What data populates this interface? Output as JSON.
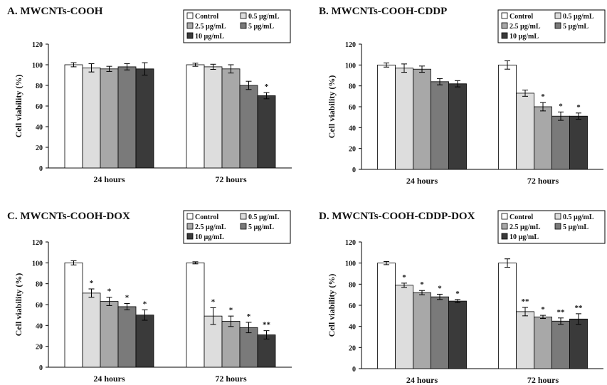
{
  "legend_labels": [
    "Control",
    "0.5 µg/mL",
    "2.5 µg/mL",
    "5 µg/mL",
    "10 µg/mL"
  ],
  "series_colors": [
    "#ffffff",
    "#dddddd",
    "#a8a8a8",
    "#7a7a7a",
    "#3a3a3a"
  ],
  "chart_data": [
    {
      "type": "bar",
      "title": "A. MWCNTs-COOH",
      "ylabel": "Cell viability (%)",
      "xlabel": "",
      "ylim": [
        0,
        120
      ],
      "yticks": [
        0,
        20,
        40,
        60,
        80,
        100,
        120
      ],
      "categories": [
        "24 hours",
        "72 hours"
      ],
      "series": [
        {
          "name": "Control",
          "values": [
            100,
            100
          ],
          "errors": [
            2,
            1.5
          ],
          "sig": [
            "",
            ""
          ]
        },
        {
          "name": "0.5 µg/mL",
          "values": [
            97,
            98
          ],
          "errors": [
            4,
            2.5
          ],
          "sig": [
            "",
            ""
          ]
        },
        {
          "name": "2.5 µg/mL",
          "values": [
            96,
            96
          ],
          "errors": [
            2.5,
            4
          ],
          "sig": [
            "",
            ""
          ]
        },
        {
          "name": "5 µg/mL",
          "values": [
            98,
            80
          ],
          "errors": [
            3,
            4
          ],
          "sig": [
            "",
            ""
          ]
        },
        {
          "name": "10 µg/mL",
          "values": [
            96,
            70
          ],
          "errors": [
            6,
            3
          ],
          "sig": [
            "",
            "*"
          ]
        }
      ]
    },
    {
      "type": "bar",
      "title": "B. MWCNTs-COOH-CDDP",
      "ylabel": "Cell viability (%)",
      "xlabel": "",
      "ylim": [
        0,
        120
      ],
      "yticks": [
        0,
        20,
        40,
        60,
        80,
        100,
        120
      ],
      "categories": [
        "24 hours",
        "72 hours"
      ],
      "series": [
        {
          "name": "Control",
          "values": [
            100,
            100
          ],
          "errors": [
            2,
            4
          ],
          "sig": [
            "",
            ""
          ]
        },
        {
          "name": "0.5 µg/mL",
          "values": [
            97,
            73
          ],
          "errors": [
            4,
            3
          ],
          "sig": [
            "",
            ""
          ]
        },
        {
          "name": "2.5 µg/mL",
          "values": [
            96,
            60
          ],
          "errors": [
            3,
            4
          ],
          "sig": [
            "",
            "*"
          ]
        },
        {
          "name": "5 µg/mL",
          "values": [
            84,
            51
          ],
          "errors": [
            3,
            4
          ],
          "sig": [
            "",
            "*"
          ]
        },
        {
          "name": "10 µg/mL",
          "values": [
            82,
            51
          ],
          "errors": [
            3,
            3
          ],
          "sig": [
            "",
            "*"
          ]
        }
      ]
    },
    {
      "type": "bar",
      "title": "C. MWCNTs-COOH-DOX",
      "ylabel": "Cell viability (%)",
      "xlabel": "",
      "ylim": [
        0,
        120
      ],
      "yticks": [
        0,
        20,
        40,
        60,
        80,
        100,
        120
      ],
      "categories": [
        "24 hours",
        "72 hours"
      ],
      "series": [
        {
          "name": "Control",
          "values": [
            100,
            100
          ],
          "errors": [
            2,
            1
          ],
          "sig": [
            "",
            ""
          ]
        },
        {
          "name": "0.5 µg/mL",
          "values": [
            71,
            49
          ],
          "errors": [
            4,
            8
          ],
          "sig": [
            "*",
            "*"
          ]
        },
        {
          "name": "2.5 µg/mL",
          "values": [
            63,
            44
          ],
          "errors": [
            4,
            5
          ],
          "sig": [
            "*",
            "*"
          ]
        },
        {
          "name": "5 µg/mL",
          "values": [
            58,
            38
          ],
          "errors": [
            3,
            5
          ],
          "sig": [
            "*",
            "*"
          ]
        },
        {
          "name": "10 µg/mL",
          "values": [
            50,
            31
          ],
          "errors": [
            5,
            4
          ],
          "sig": [
            "*",
            "**"
          ]
        }
      ]
    },
    {
      "type": "bar",
      "title": "D. MWCNTs-COOH-CDDP-DOX",
      "ylabel": "Cell viability (%)",
      "xlabel": "",
      "ylim": [
        0,
        120
      ],
      "yticks": [
        0,
        20,
        40,
        60,
        80,
        100,
        120
      ],
      "categories": [
        "24 hours",
        "72 hours"
      ],
      "series": [
        {
          "name": "Control",
          "values": [
            100,
            100
          ],
          "errors": [
            1.5,
            4
          ],
          "sig": [
            "",
            ""
          ]
        },
        {
          "name": "0.5 µg/mL",
          "values": [
            79,
            54
          ],
          "errors": [
            2,
            4
          ],
          "sig": [
            "*",
            "**"
          ]
        },
        {
          "name": "2.5 µg/mL",
          "values": [
            72,
            49
          ],
          "errors": [
            2,
            1.5
          ],
          "sig": [
            "*",
            "*"
          ]
        },
        {
          "name": "5 µg/mL",
          "values": [
            68,
            45
          ],
          "errors": [
            2.5,
            3
          ],
          "sig": [
            "*",
            "**"
          ]
        },
        {
          "name": "10 µg/mL",
          "values": [
            64,
            47
          ],
          "errors": [
            1.5,
            5
          ],
          "sig": [
            "*",
            "**"
          ]
        }
      ]
    }
  ]
}
